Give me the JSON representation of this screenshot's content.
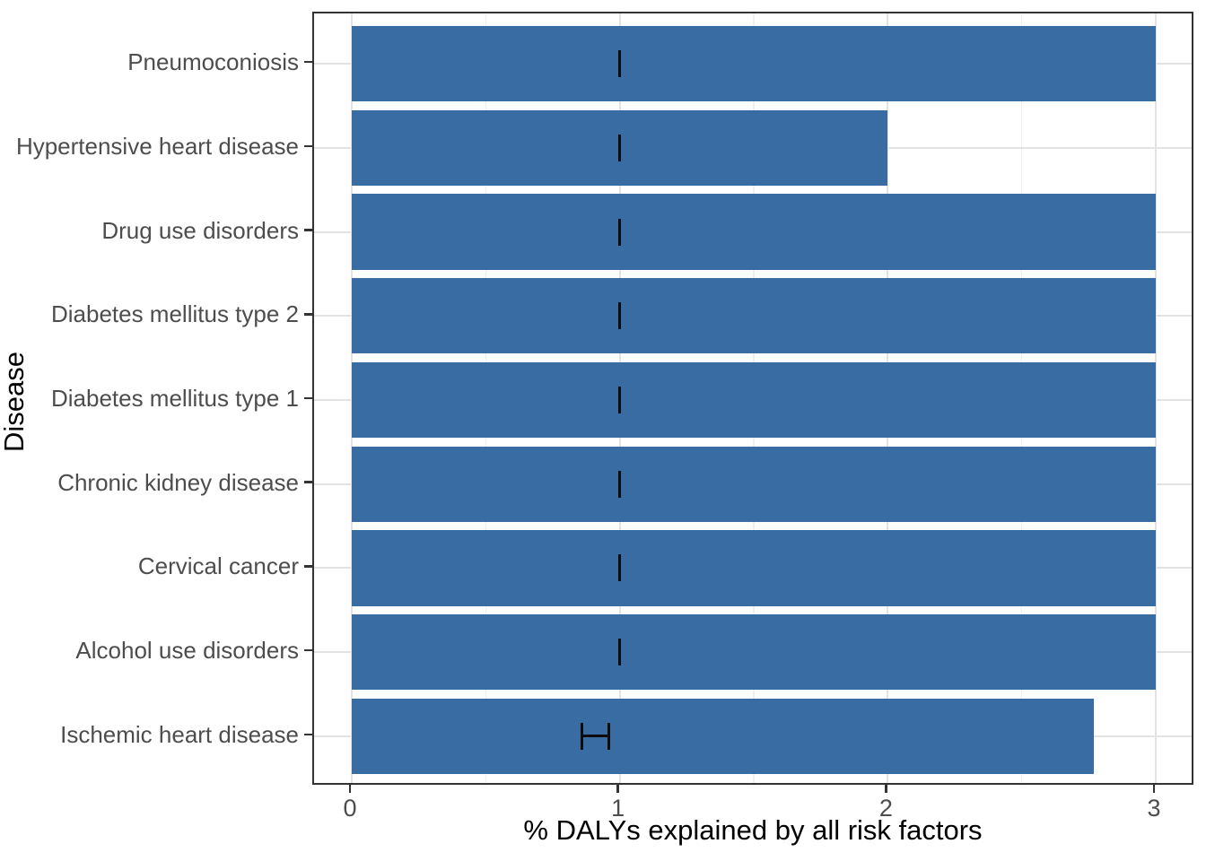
{
  "chart_data": {
    "type": "bar",
    "orientation": "horizontal",
    "title": "",
    "xlabel": "% DALYs explained by all risk factors",
    "ylabel": "Disease",
    "categories": [
      "Pneumoconiosis",
      "Hypertensive heart disease",
      "Drug use disorders",
      "Diabetes mellitus type 2",
      "Diabetes mellitus type 1",
      "Chronic kidney disease",
      "Cervical cancer",
      "Alcohol use disorders",
      "Ischemic heart disease"
    ],
    "values": [
      3.0,
      2.0,
      3.0,
      3.0,
      3.0,
      3.0,
      3.0,
      3.0,
      2.77
    ],
    "error_bars": [
      {
        "xmin": 1.0,
        "xmax": 1.0
      },
      {
        "xmin": 1.0,
        "xmax": 1.0
      },
      {
        "xmin": 1.0,
        "xmax": 1.0
      },
      {
        "xmin": 1.0,
        "xmax": 1.0
      },
      {
        "xmin": 1.0,
        "xmax": 1.0
      },
      {
        "xmin": 1.0,
        "xmax": 1.0
      },
      {
        "xmin": 1.0,
        "xmax": 1.0
      },
      {
        "xmin": 1.0,
        "xmax": 1.0
      },
      {
        "xmin": 0.86,
        "xmax": 0.96
      }
    ],
    "x_ticks": [
      0,
      1,
      2,
      3
    ],
    "x_tick_labels": [
      "0",
      "1",
      "2",
      "3"
    ],
    "x_minor_ticks": [
      0.5,
      1.5,
      2.5
    ],
    "xlim": [
      -0.15,
      3.15
    ],
    "grid": true,
    "legend": false,
    "colors": {
      "bar_fill": "#3a6ca4",
      "error_bar": "#0d0d0d",
      "grid_major": "#e3e3e3",
      "grid_minor": "#efefef",
      "panel_border": "#333333",
      "tick_mark": "#333333",
      "tick_label": "#4d4d4d",
      "axis_title": "#000000",
      "background": "#ffffff"
    }
  }
}
